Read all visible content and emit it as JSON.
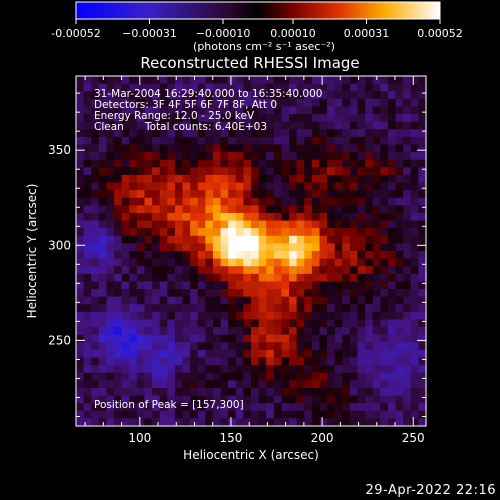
{
  "chart_data": {
    "type": "heatmap",
    "title": "Reconstructed RHESSI Image",
    "xlabel": "Heliocentric X (arcsec)",
    "ylabel": "Heliocentric Y (arcsec)",
    "xlim": [
      65,
      257
    ],
    "ylim": [
      205,
      389
    ],
    "xticks": [
      100,
      150,
      200,
      250
    ],
    "yticks": [
      250,
      300,
      350
    ],
    "colorbar": {
      "range": [
        -0.00052,
        0.00052
      ],
      "ticks": [
        -0.00052,
        -0.00031,
        -0.0001,
        0.0001,
        0.00031,
        0.00052
      ],
      "tick_labels": [
        "-0.00052",
        "−0.00031",
        "−0.00010",
        "0.00010",
        "0.00031",
        "0.00052"
      ],
      "label": "(photons cm⁻² s⁻¹ asec⁻²)"
    },
    "peak": [
      157,
      300
    ],
    "peak_value": 0.00052,
    "sources": [
      {
        "x": 157,
        "y": 300,
        "strength": 1.0,
        "sigma": 11
      },
      {
        "x": 187,
        "y": 299,
        "strength": 0.95,
        "sigma": 10
      },
      {
        "x": 140,
        "y": 312,
        "strength": 0.55,
        "sigma": 16
      },
      {
        "x": 105,
        "y": 325,
        "strength": 0.45,
        "sigma": 18
      },
      {
        "x": 175,
        "y": 275,
        "strength": 0.45,
        "sigma": 15
      },
      {
        "x": 172,
        "y": 245,
        "strength": 0.38,
        "sigma": 12
      },
      {
        "x": 220,
        "y": 295,
        "strength": 0.35,
        "sigma": 16
      },
      {
        "x": 150,
        "y": 338,
        "strength": 0.32,
        "sigma": 12
      },
      {
        "x": 198,
        "y": 338,
        "strength": 0.3,
        "sigma": 14
      },
      {
        "x": 230,
        "y": 340,
        "strength": 0.22,
        "sigma": 10
      },
      {
        "x": 125,
        "y": 230,
        "strength": 0.25,
        "sigma": 10
      },
      {
        "x": 200,
        "y": 225,
        "strength": 0.25,
        "sigma": 11
      },
      {
        "x": 90,
        "y": 251,
        "strength": -0.55,
        "sigma": 9
      },
      {
        "x": 78,
        "y": 300,
        "strength": -0.4,
        "sigma": 8
      },
      {
        "x": 116,
        "y": 238,
        "strength": -0.4,
        "sigma": 10
      },
      {
        "x": 240,
        "y": 240,
        "strength": -0.25,
        "sigma": 12
      }
    ]
  },
  "annotations": {
    "time_range": "31-Mar-2004 16:29:40.000 to 16:35:40.000",
    "detectors": "Detectors: 3F 4F 5F 6F 7F 8F, Att 0",
    "energy": "Energy Range: 12.0 - 25.0 keV",
    "method": "Clean",
    "counts": "Total counts: 6.40E+03",
    "peak_text": "Position of Peak = [157,300]"
  },
  "footer": {
    "timestamp": "29-Apr-2022 22:16"
  }
}
